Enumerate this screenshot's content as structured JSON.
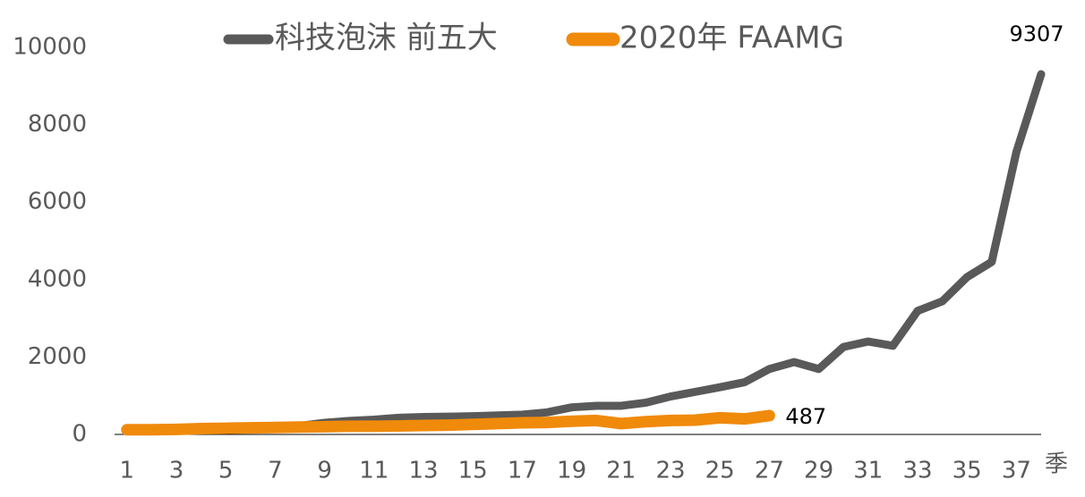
{
  "chart_data": {
    "type": "line",
    "x_label": "季",
    "x": [
      1,
      2,
      3,
      4,
      5,
      6,
      7,
      8,
      9,
      10,
      11,
      12,
      13,
      14,
      15,
      16,
      17,
      18,
      19,
      20,
      21,
      22,
      23,
      24,
      25,
      26,
      27,
      28,
      29,
      30,
      31,
      32,
      33,
      34,
      35,
      36,
      37,
      38
    ],
    "xlim": [
      0.5,
      38
    ],
    "xticks": [
      1,
      3,
      5,
      7,
      9,
      11,
      13,
      15,
      17,
      19,
      21,
      23,
      25,
      27,
      29,
      31,
      33,
      35,
      37
    ],
    "ylim": [
      0,
      10000
    ],
    "yticks": [
      0,
      2000,
      4000,
      6000,
      8000,
      10000
    ],
    "legend": "top",
    "series": [
      {
        "name": "科技泡沫 前五大",
        "color": "#595959",
        "values": [
          80,
          90,
          100,
          120,
          140,
          160,
          190,
          220,
          300,
          350,
          380,
          430,
          450,
          460,
          470,
          490,
          510,
          570,
          700,
          740,
          740,
          820,
          980,
          1100,
          1220,
          1350,
          1690,
          1870,
          1690,
          2260,
          2400,
          2290,
          3190,
          3440,
          4065,
          4457,
          7300,
          9307
        ]
      },
      {
        "name": "2020年 FAAMG",
        "color": "#f08a0b",
        "values": [
          120,
          120,
          130,
          150,
          160,
          170,
          180,
          190,
          200,
          210,
          210,
          220,
          230,
          240,
          260,
          280,
          300,
          310,
          340,
          360,
          280,
          330,
          360,
          370,
          430,
          400,
          487,
          null,
          null,
          null,
          null,
          null,
          null,
          null,
          null,
          null,
          null,
          null
        ]
      }
    ]
  }
}
